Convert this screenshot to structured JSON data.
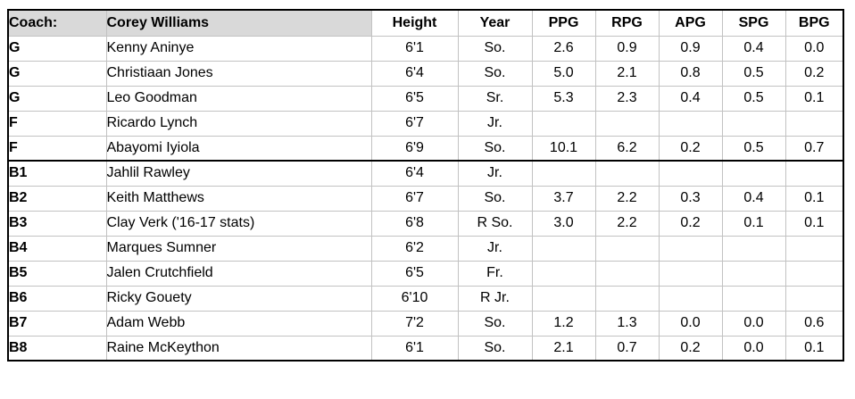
{
  "table": {
    "coach_label": "Coach:",
    "coach_name": "Corey Williams",
    "columns": [
      "Height",
      "Year",
      "PPG",
      "RPG",
      "APG",
      "SPG",
      "BPG"
    ],
    "rows": [
      {
        "pos": "G",
        "name": "Kenny Aninye",
        "height": "6'1",
        "year": "So.",
        "ppg": "2.6",
        "rpg": "0.9",
        "apg": "0.9",
        "spg": "0.4",
        "bpg": "0.0",
        "section": "starters"
      },
      {
        "pos": "G",
        "name": "Christiaan Jones",
        "height": "6'4",
        "year": "So.",
        "ppg": "5.0",
        "rpg": "2.1",
        "apg": "0.8",
        "spg": "0.5",
        "bpg": "0.2",
        "section": "starters"
      },
      {
        "pos": "G",
        "name": "Leo Goodman",
        "height": "6'5",
        "year": "Sr.",
        "ppg": "5.3",
        "rpg": "2.3",
        "apg": "0.4",
        "spg": "0.5",
        "bpg": "0.1",
        "section": "starters"
      },
      {
        "pos": "F",
        "name": "Ricardo Lynch",
        "height": "6'7",
        "year": "Jr.",
        "ppg": "",
        "rpg": "",
        "apg": "",
        "spg": "",
        "bpg": "",
        "section": "starters"
      },
      {
        "pos": "F",
        "name": "Abayomi Iyiola",
        "height": "6'9",
        "year": "So.",
        "ppg": "10.1",
        "rpg": "6.2",
        "apg": "0.2",
        "spg": "0.5",
        "bpg": "0.7",
        "section": "starters"
      },
      {
        "pos": "B1",
        "name": "Jahlil Rawley",
        "height": "6'4",
        "year": "Jr.",
        "ppg": "",
        "rpg": "",
        "apg": "",
        "spg": "",
        "bpg": "",
        "section": "bench"
      },
      {
        "pos": "B2",
        "name": "Keith Matthews",
        "height": "6'7",
        "year": "So.",
        "ppg": "3.7",
        "rpg": "2.2",
        "apg": "0.3",
        "spg": "0.4",
        "bpg": "0.1",
        "section": "bench"
      },
      {
        "pos": "B3",
        "name": "Clay Verk ('16-17 stats)",
        "height": "6'8",
        "year": "R So.",
        "ppg": "3.0",
        "rpg": "2.2",
        "apg": "0.2",
        "spg": "0.1",
        "bpg": "0.1",
        "section": "bench"
      },
      {
        "pos": "B4",
        "name": "Marques Sumner",
        "height": "6'2",
        "year": "Jr.",
        "ppg": "",
        "rpg": "",
        "apg": "",
        "spg": "",
        "bpg": "",
        "section": "bench"
      },
      {
        "pos": "B5",
        "name": "Jalen Crutchfield",
        "height": "6'5",
        "year": "Fr.",
        "ppg": "",
        "rpg": "",
        "apg": "",
        "spg": "",
        "bpg": "",
        "section": "bench"
      },
      {
        "pos": "B6",
        "name": "Ricky Gouety",
        "height": "6'10",
        "year": "R Jr.",
        "ppg": "",
        "rpg": "",
        "apg": "",
        "spg": "",
        "bpg": "",
        "section": "bench"
      },
      {
        "pos": "B7",
        "name": "Adam Webb",
        "height": "7'2",
        "year": "So.",
        "ppg": "1.2",
        "rpg": "1.3",
        "apg": "0.0",
        "spg": "0.0",
        "bpg": "0.6",
        "section": "bench"
      },
      {
        "pos": "B8",
        "name": "Raine McKeython",
        "height": "6'1",
        "year": "So.",
        "ppg": "2.1",
        "rpg": "0.7",
        "apg": "0.2",
        "spg": "0.0",
        "bpg": "0.1",
        "section": "bench"
      }
    ],
    "colors": {
      "header_bg": "#d9d9d9",
      "grid_line": "#c2c2c2",
      "border": "#000000"
    }
  }
}
